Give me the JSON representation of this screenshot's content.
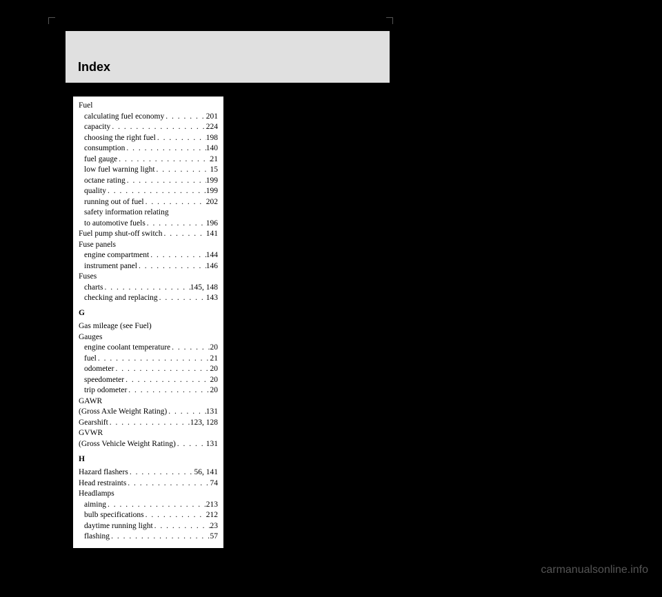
{
  "header": {
    "title": "Index"
  },
  "sections": [
    {
      "letter": null,
      "groups": [
        {
          "head": "Fuel",
          "items": [
            {
              "label": "calculating fuel economy",
              "page": "201"
            },
            {
              "label": "capacity",
              "page": "224"
            },
            {
              "label": "choosing the right fuel",
              "page": "198"
            },
            {
              "label": "consumption",
              "page": "140"
            },
            {
              "label": "fuel gauge",
              "page": "21"
            },
            {
              "label": "low fuel warning light",
              "page": "15"
            },
            {
              "label": "octane rating",
              "page": "199"
            },
            {
              "label": "quality",
              "page": "199"
            },
            {
              "label": "running out of fuel",
              "page": "202"
            },
            {
              "label": "safety information relating",
              "page": null
            },
            {
              "label": "to automotive fuels",
              "page": "196",
              "continuation": true
            }
          ]
        },
        {
          "head_inline": {
            "label": "Fuel pump shut-off switch",
            "page": "141"
          }
        },
        {
          "head": "Fuse panels",
          "items": [
            {
              "label": "engine compartment",
              "page": "144"
            },
            {
              "label": "instrument panel",
              "page": "146"
            }
          ]
        },
        {
          "head": "Fuses",
          "items": [
            {
              "label": "charts",
              "page": "145, 148"
            },
            {
              "label": "checking and replacing",
              "page": "143"
            }
          ]
        }
      ]
    },
    {
      "letter": "G",
      "groups": [
        {
          "head": "Gas mileage (see Fuel)"
        },
        {
          "head": "Gauges",
          "items": [
            {
              "label": "engine coolant temperature",
              "page": "20"
            },
            {
              "label": "fuel",
              "page": "21"
            },
            {
              "label": "odometer",
              "page": "20"
            },
            {
              "label": "speedometer",
              "page": "20"
            },
            {
              "label": "trip odometer",
              "page": "20"
            }
          ]
        },
        {
          "head": "GAWR"
        },
        {
          "head_inline": {
            "label": "(Gross Axle Weight Rating)",
            "page": "131"
          }
        },
        {
          "head_inline": {
            "label": "Gearshift",
            "page": "123, 128"
          }
        },
        {
          "head": "GVWR"
        },
        {
          "head_inline": {
            "label": "(Gross Vehicle Weight Rating)",
            "page": "131"
          }
        }
      ]
    },
    {
      "letter": "H",
      "groups": [
        {
          "head_inline": {
            "label": "Hazard flashers",
            "page": "56, 141"
          }
        },
        {
          "head_inline": {
            "label": "Head restraints",
            "page": "74"
          }
        },
        {
          "head": "Headlamps",
          "items": [
            {
              "label": "aiming",
              "page": "213"
            },
            {
              "label": "bulb specifications",
              "page": "212"
            },
            {
              "label": "daytime running light",
              "page": "23"
            },
            {
              "label": "flashing",
              "page": "57"
            }
          ]
        }
      ]
    }
  ],
  "watermark": "carmanualsonline.info",
  "colors": {
    "background": "#000000",
    "header_bg": "#e0e0e0",
    "content_bg": "#ffffff",
    "text": "#000000",
    "watermark_text": "#555555"
  }
}
